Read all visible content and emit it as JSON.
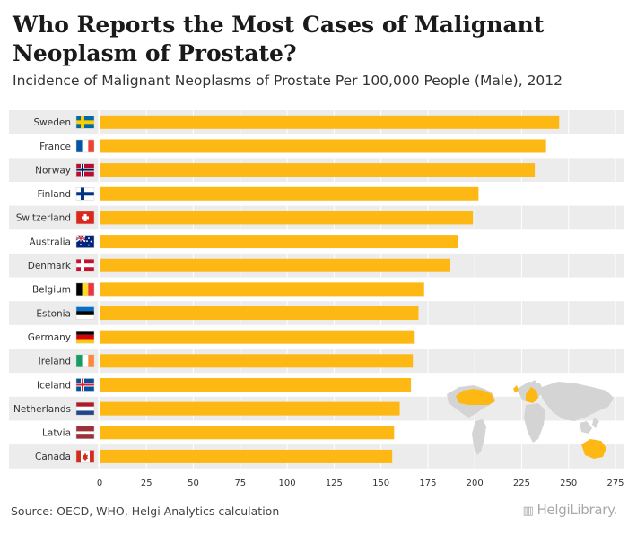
{
  "title": "Who Reports the Most Cases of Malignant Neoplasm of Prostate?",
  "subtitle": "Incidence of Malignant Neoplasms of Prostate Per 100,000 People (Male), 2012",
  "source": "Source: OECD, WHO, Helgi Analytics calculation",
  "brand": "HelgiLibrary.",
  "colors": {
    "bar": "#FDB813",
    "band": "#ececec",
    "grid": "#ffffff",
    "map_land": "#d4d4d4",
    "map_highlight": "#FDB813"
  },
  "chart_data": {
    "type": "bar",
    "orientation": "horizontal",
    "title": "Who Reports the Most Cases of Malignant Neoplasm of Prostate?",
    "subtitle": "Incidence of Malignant Neoplasms of Prostate Per 100,000 People (Male), 2012",
    "xlabel": "",
    "ylabel": "",
    "xlim": [
      0,
      275
    ],
    "ticks": [
      0,
      25,
      50,
      75,
      100,
      125,
      150,
      175,
      200,
      225,
      250,
      275
    ],
    "categories": [
      "Sweden",
      "France",
      "Norway",
      "Finland",
      "Switzerland",
      "Australia",
      "Denmark",
      "Belgium",
      "Estonia",
      "Germany",
      "Ireland",
      "Iceland",
      "Netherlands",
      "Latvia",
      "Canada"
    ],
    "values": [
      245,
      238,
      232,
      202,
      199,
      191,
      187,
      173,
      170,
      168,
      167,
      166,
      160,
      157,
      156
    ]
  }
}
